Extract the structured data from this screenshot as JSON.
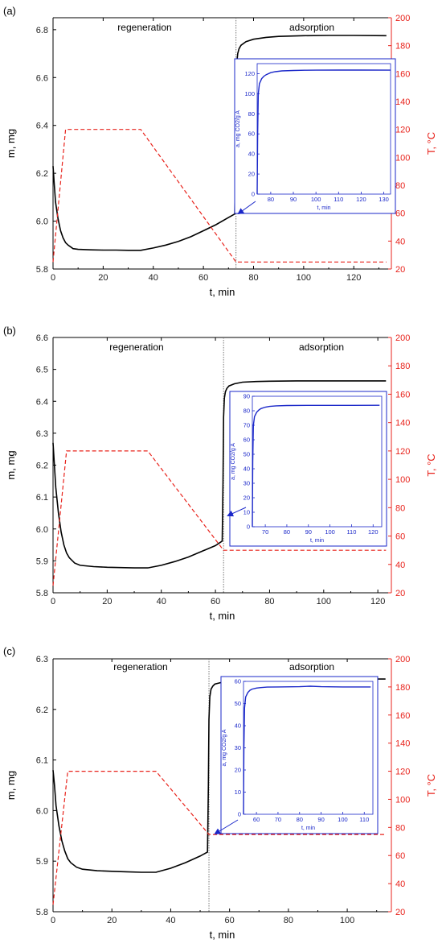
{
  "chart_data": [
    {
      "type": "line",
      "panel_label": "(a)",
      "xlabel": "t, min",
      "ylabel_left": "m, mg",
      "ylabel_right": "T, °C",
      "xlim": [
        0,
        135
      ],
      "ylim_left": [
        5.8,
        6.85
      ],
      "ylim_right": [
        20,
        200
      ],
      "xticks": [
        0,
        20,
        40,
        60,
        80,
        100,
        120
      ],
      "yticks_left": [
        5.8,
        6.0,
        6.2,
        6.4,
        6.6,
        6.8
      ],
      "yticks_right": [
        20,
        40,
        60,
        80,
        100,
        120,
        140,
        160,
        180,
        200
      ],
      "phase_labels": [
        "regeneration",
        "adsorption"
      ],
      "divider_x": 73,
      "series": [
        {
          "axis": "left",
          "color": "#000000",
          "style": "solid",
          "x": [
            0,
            0.5,
            1,
            2,
            3,
            4,
            5,
            6,
            8,
            10,
            15,
            20,
            25,
            30,
            35,
            40,
            45,
            50,
            55,
            60,
            65,
            70,
            72.5,
            72.8,
            73.0,
            73.3,
            73.7,
            74.2,
            75,
            77,
            80,
            85,
            90,
            100,
            110,
            120,
            133
          ],
          "y": [
            6.23,
            6.15,
            6.08,
            6.01,
            5.96,
            5.93,
            5.91,
            5.9,
            5.885,
            5.882,
            5.88,
            5.879,
            5.879,
            5.878,
            5.878,
            5.888,
            5.9,
            5.915,
            5.935,
            5.96,
            5.985,
            6.015,
            6.03,
            6.25,
            6.55,
            6.66,
            6.7,
            6.72,
            6.735,
            6.75,
            6.76,
            6.768,
            6.772,
            6.775,
            6.776,
            6.776,
            6.775
          ]
        },
        {
          "axis": "right",
          "color": "#e8231c",
          "style": "dashed",
          "x": [
            0,
            5,
            35,
            73,
            133
          ],
          "y": [
            25,
            120,
            120,
            25,
            25
          ]
        }
      ],
      "inset": {
        "xlabel": "t, min",
        "ylabel": "a, mg CO2/g A",
        "xlim": [
          74,
          133
        ],
        "ylim": [
          0,
          130
        ],
        "xticks": [
          80,
          90,
          100,
          110,
          120,
          130
        ],
        "yticks": [
          0,
          20,
          40,
          60,
          80,
          100,
          120
        ],
        "x": [
          74,
          74.2,
          74.5,
          75,
          76,
          77,
          78,
          80,
          82,
          85,
          90,
          95,
          100,
          110,
          120,
          133
        ],
        "y": [
          0,
          60,
          100,
          110,
          115,
          117.5,
          119,
          121,
          122,
          122.8,
          123.2,
          123.4,
          123.5,
          123.6,
          123.6,
          123.5
        ]
      }
    },
    {
      "type": "line",
      "panel_label": "(b)",
      "xlabel": "t, min",
      "ylabel_left": "m, mg",
      "ylabel_right": "T, °C",
      "xlim": [
        0,
        125
      ],
      "ylim_left": [
        5.8,
        6.6
      ],
      "ylim_right": [
        20,
        200
      ],
      "xticks": [
        0,
        20,
        40,
        60,
        80,
        100,
        120
      ],
      "yticks_left": [
        5.8,
        5.9,
        6.0,
        6.1,
        6.2,
        6.3,
        6.4,
        6.5,
        6.6
      ],
      "yticks_right": [
        20,
        40,
        60,
        80,
        100,
        120,
        140,
        160,
        180,
        200
      ],
      "phase_labels": [
        "regeneration",
        "adsorption"
      ],
      "divider_x": 63,
      "series": [
        {
          "axis": "left",
          "color": "#000000",
          "style": "solid",
          "x": [
            0,
            0.5,
            1,
            2,
            3,
            4,
            5,
            6,
            8,
            10,
            15,
            20,
            25,
            30,
            35,
            40,
            45,
            50,
            55,
            60,
            62.5,
            62.8,
            63.0,
            63.3,
            63.7,
            64.2,
            65,
            67,
            70,
            75,
            80,
            90,
            100,
            110,
            123
          ],
          "y": [
            6.27,
            6.2,
            6.13,
            6.05,
            5.99,
            5.95,
            5.925,
            5.91,
            5.893,
            5.886,
            5.882,
            5.88,
            5.879,
            5.878,
            5.878,
            5.886,
            5.898,
            5.912,
            5.93,
            5.948,
            5.962,
            6.15,
            6.35,
            6.41,
            6.43,
            6.44,
            6.448,
            6.455,
            6.46,
            6.462,
            6.463,
            6.464,
            6.464,
            6.464,
            6.464
          ]
        },
        {
          "axis": "right",
          "color": "#e8231c",
          "style": "dashed",
          "x": [
            0,
            5,
            35,
            63,
            123
          ],
          "y": [
            25,
            120,
            120,
            50,
            50
          ]
        }
      ],
      "inset": {
        "xlabel": "t, min",
        "ylabel": "a, mg CO2/g A",
        "xlim": [
          64,
          124
        ],
        "ylim": [
          0,
          90
        ],
        "xticks": [
          70,
          80,
          90,
          100,
          110,
          120
        ],
        "yticks": [
          0,
          10,
          20,
          30,
          40,
          50,
          60,
          70,
          80,
          90
        ],
        "x": [
          64,
          64.2,
          64.5,
          65,
          66,
          67,
          68,
          70,
          72,
          75,
          80,
          90,
          100,
          110,
          123
        ],
        "y": [
          0,
          45,
          70,
          76,
          79,
          80.5,
          81.5,
          82.5,
          83,
          83.4,
          83.6,
          83.7,
          83.7,
          83.7,
          83.8
        ]
      }
    },
    {
      "type": "line",
      "panel_label": "(c)",
      "xlabel": "t, min",
      "ylabel_left": "m, mg",
      "ylabel_right": "T, °C",
      "xlim": [
        0,
        115
      ],
      "ylim_left": [
        5.8,
        6.3
      ],
      "ylim_right": [
        20,
        200
      ],
      "xticks": [
        0,
        20,
        40,
        60,
        80,
        100
      ],
      "yticks_left": [
        5.8,
        5.9,
        6.0,
        6.1,
        6.2,
        6.3
      ],
      "yticks_right": [
        20,
        40,
        60,
        80,
        100,
        120,
        140,
        160,
        180,
        200
      ],
      "phase_labels": [
        "regeneration",
        "adsorption"
      ],
      "divider_x": 53,
      "series": [
        {
          "axis": "left",
          "color": "#000000",
          "style": "solid",
          "x": [
            0,
            0.5,
            1,
            2,
            3,
            4,
            5,
            6,
            8,
            10,
            15,
            20,
            25,
            30,
            35,
            40,
            45,
            50,
            52.5,
            52.8,
            53.0,
            53.3,
            53.7,
            54.3,
            55,
            57,
            60,
            65,
            70,
            80,
            85,
            90,
            100,
            113
          ],
          "y": [
            6.08,
            6.05,
            6.01,
            5.97,
            5.94,
            5.92,
            5.905,
            5.897,
            5.888,
            5.884,
            5.881,
            5.88,
            5.879,
            5.878,
            5.878,
            5.886,
            5.897,
            5.91,
            5.918,
            6.05,
            6.18,
            6.225,
            6.24,
            6.246,
            6.25,
            6.253,
            6.256,
            6.258,
            6.259,
            6.26,
            6.261,
            6.26,
            6.26,
            6.26
          ]
        },
        {
          "axis": "right",
          "color": "#e8231c",
          "style": "dashed",
          "x": [
            0,
            5,
            35,
            53,
            113
          ],
          "y": [
            25,
            120,
            120,
            75,
            75
          ]
        }
      ],
      "inset": {
        "xlabel": "t, min",
        "ylabel": "a, mg CO2/g A",
        "xlim": [
          54,
          114
        ],
        "ylim": [
          0,
          60
        ],
        "xticks": [
          60,
          70,
          80,
          90,
          100,
          110
        ],
        "yticks": [
          0,
          10,
          20,
          30,
          40,
          50,
          60
        ],
        "x": [
          54,
          54.2,
          54.5,
          55,
          56,
          57,
          58,
          60,
          62,
          65,
          70,
          80,
          85,
          90,
          100,
          113
        ],
        "y": [
          0,
          30,
          48,
          53,
          55,
          56,
          56.5,
          57,
          57.2,
          57.4,
          57.5,
          57.6,
          57.8,
          57.6,
          57.5,
          57.5
        ]
      }
    }
  ]
}
